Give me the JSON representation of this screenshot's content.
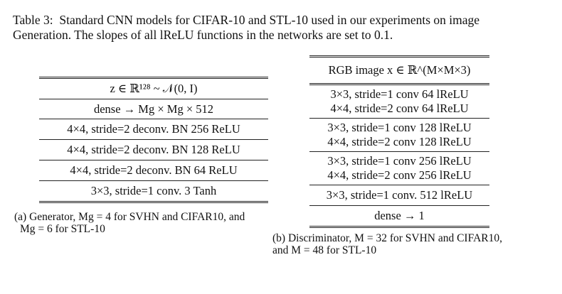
{
  "caption": {
    "label": "Table 3:",
    "text_line1": "Standard CNN models for CIFAR-10 and STL-10 used in our experiments on image",
    "text_line2": "Generation. The slopes of all lReLU functions in the networks are set to 0.1."
  },
  "generator": {
    "rows": [
      "z ∈ ℝ¹²⁸ ~ 𝒩(0, I)",
      "dense → Mg × Mg × 512",
      "4×4, stride=2 deconv. BN 256 ReLU",
      "4×4, stride=2 deconv. BN 128 ReLU",
      "4×4, stride=2 deconv. BN 64 ReLU",
      "3×3, stride=1 conv. 3 Tanh"
    ],
    "subcaption_line1": "(a) Generator, Mg = 4 for SVHN and CIFAR10, and",
    "subcaption_line2": "Mg = 6 for STL-10"
  },
  "discriminator": {
    "header": "RGB image x ∈ ℝ^(M×M×3)",
    "blocks": [
      [
        "3×3, stride=1 conv 64 lReLU",
        "4×4, stride=2 conv 64 lReLU"
      ],
      [
        "3×3, stride=1 conv 128 lReLU",
        "4×4, stride=2 conv 128 lReLU"
      ],
      [
        "3×3, stride=1 conv 256 lReLU",
        "4×4, stride=2 conv 256 lReLU"
      ],
      [
        "3×3, stride=1 conv. 512 lReLU"
      ],
      [
        "dense → 1"
      ]
    ],
    "subcaption_line1": "(b) Discriminator, M = 32 for SVHN and CIFAR10,",
    "subcaption_line2": "and M = 48 for STL-10"
  }
}
